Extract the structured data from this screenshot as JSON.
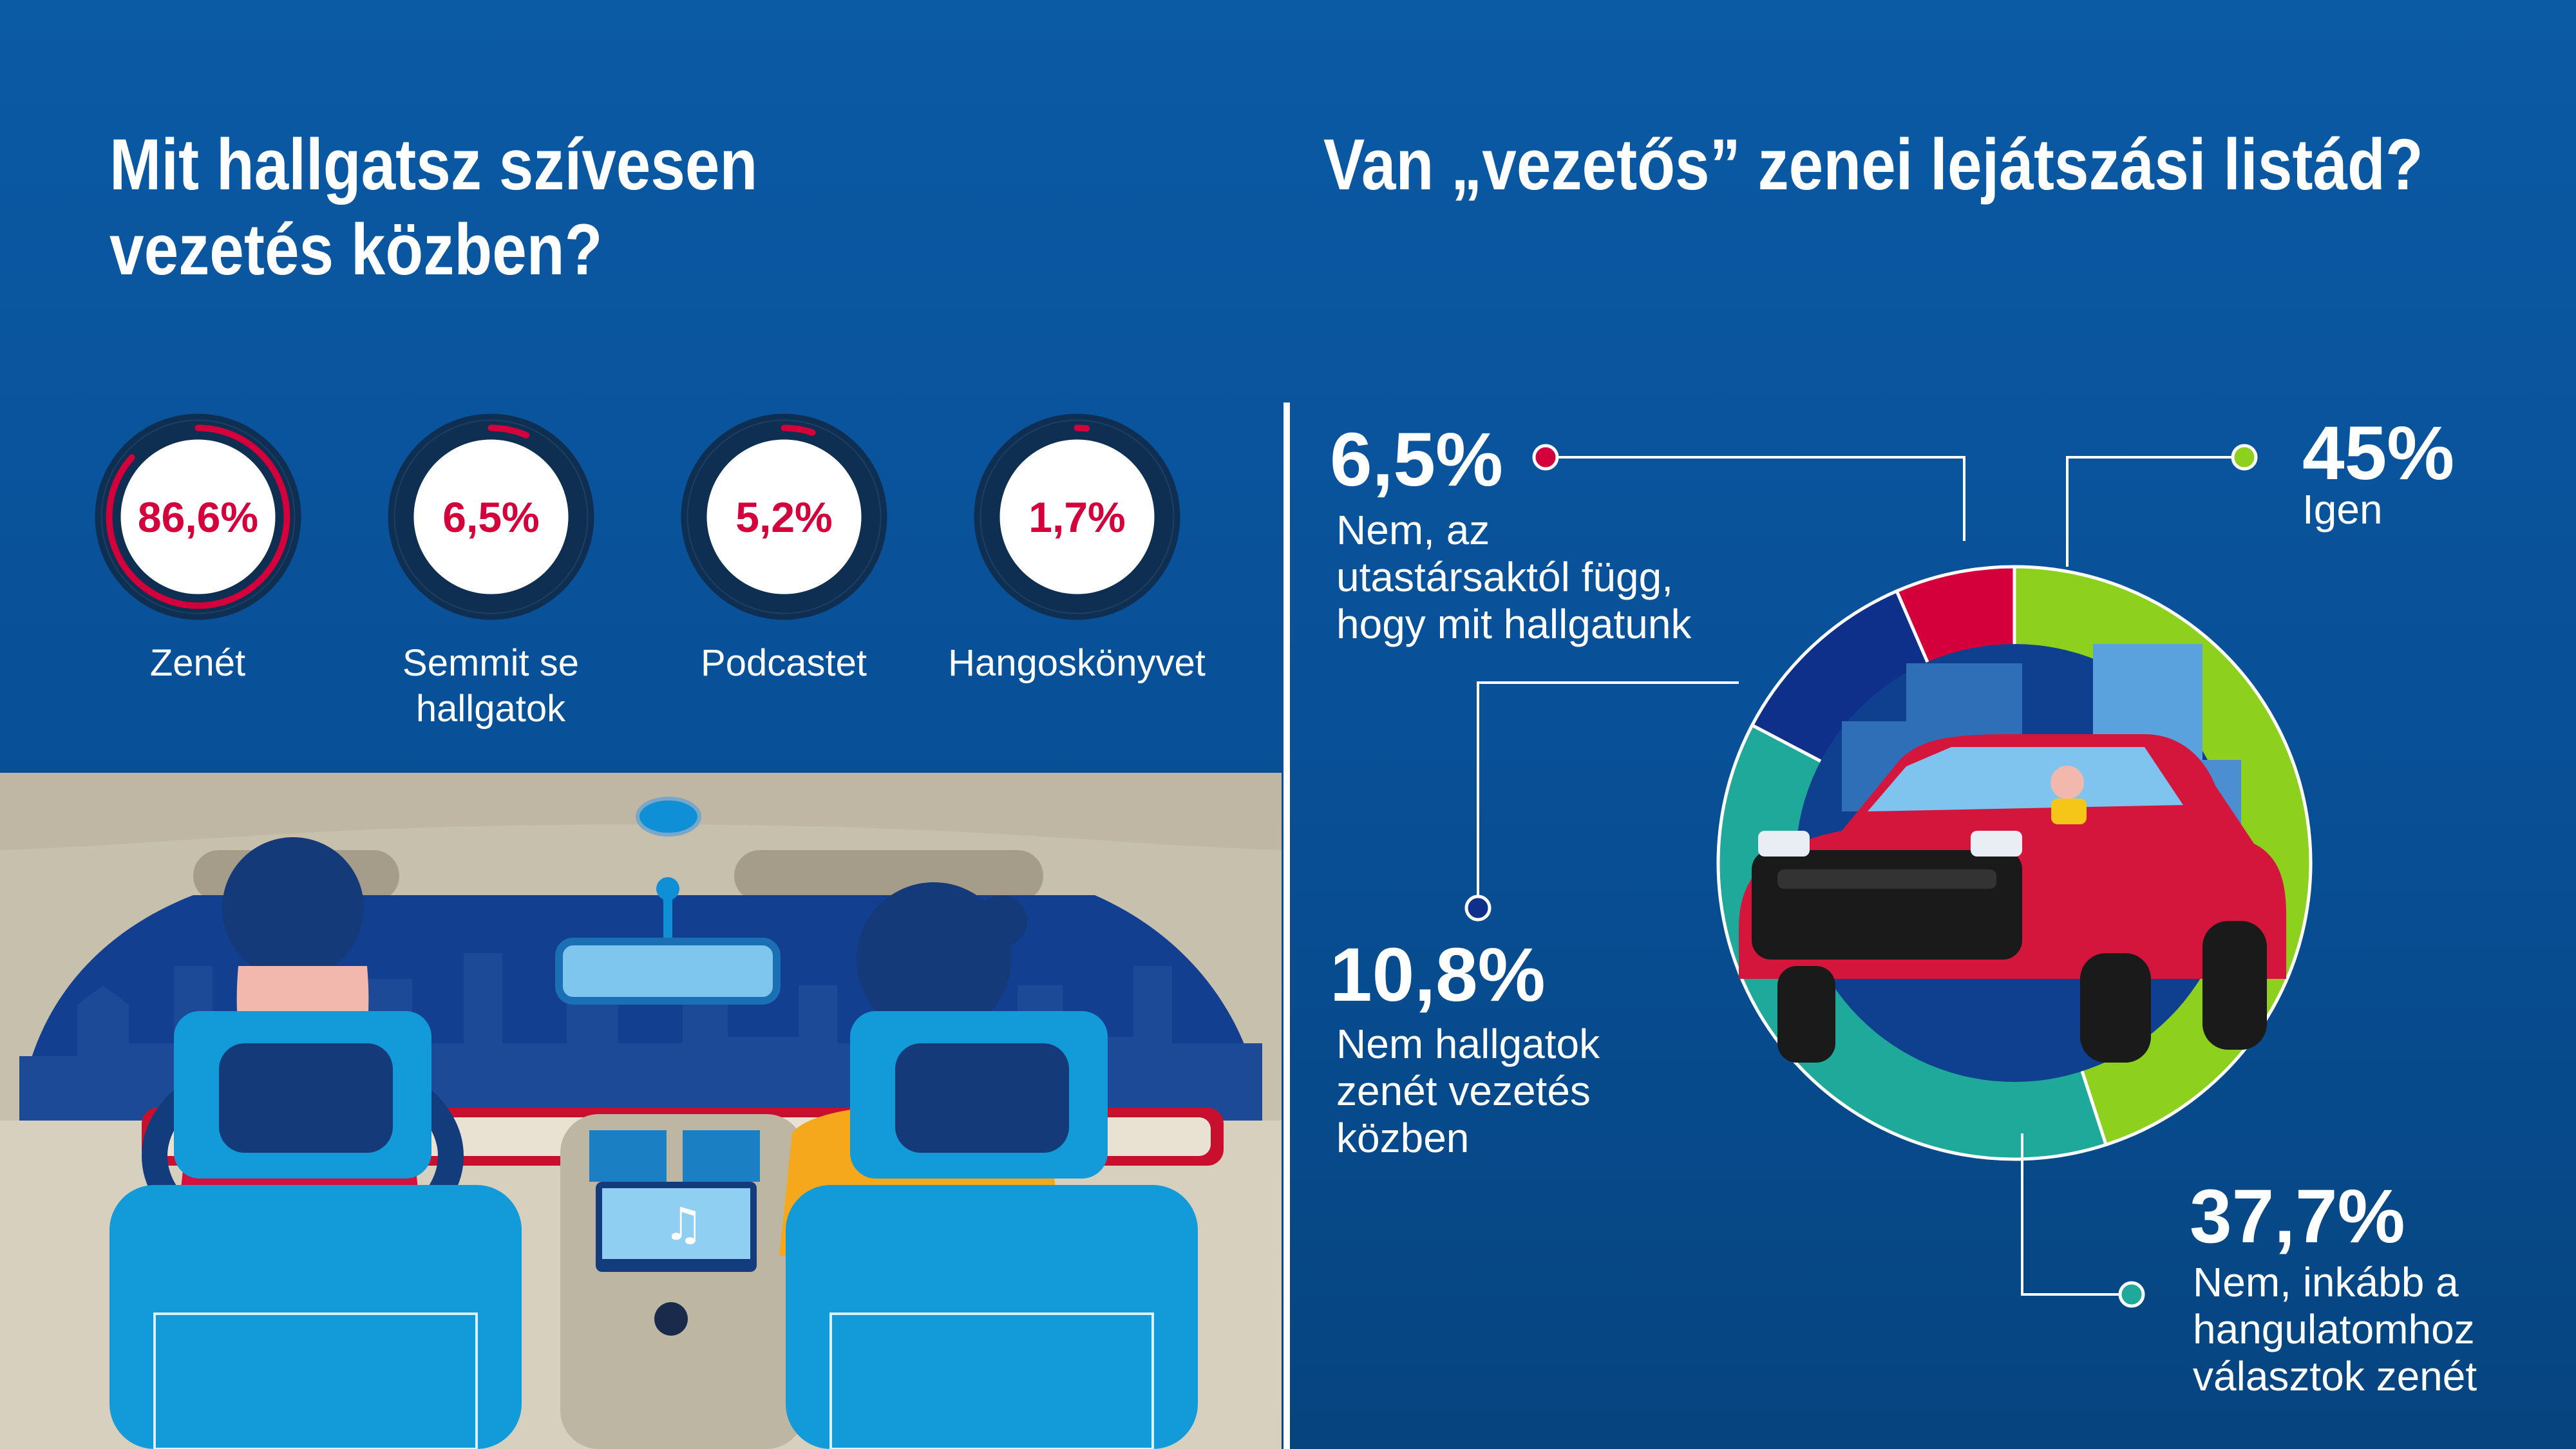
{
  "left": {
    "title": "Mit hallgatsz szívesen vezetés közben?",
    "items": [
      {
        "value": "86,6%",
        "label": "Zenét",
        "percent": 86.6
      },
      {
        "value": "6,5%",
        "label": "Semmit se hallgatok",
        "percent": 6.5
      },
      {
        "value": "5,2%",
        "label": "Podcastet",
        "percent": 5.2
      },
      {
        "value": "1,7%",
        "label": "Hangoskönyvet",
        "percent": 1.7
      }
    ]
  },
  "right": {
    "title": "Van „vezetős” zenei lejátszási listád?",
    "callouts": {
      "yes": {
        "value": "45%",
        "line1": "Igen"
      },
      "no_mood": {
        "value": "37,7%",
        "line1": "Nem, inkább a",
        "line2": "hangulatomhoz",
        "line3": "választok zenét"
      },
      "no_music": {
        "value": "10,8%",
        "line1": "Nem hallgatok",
        "line2": "zenét vezetés",
        "line3": "közben"
      },
      "no_passenger": {
        "value": "6,5%",
        "line1": "Nem, az",
        "line2": "utastársaktól függ,",
        "line3": "hogy mit hallgatunk"
      }
    }
  },
  "chart_data": [
    {
      "type": "bar",
      "title": "Mit hallgatsz szívesen vezetés közben?",
      "categories": [
        "Zenét",
        "Semmit se hallgatok",
        "Podcastet",
        "Hangoskönyvet"
      ],
      "values": [
        86.6,
        6.5,
        5.2,
        1.7
      ],
      "ylim": [
        0,
        100
      ]
    },
    {
      "type": "pie",
      "title": "Van „vezetős” zenei lejátszási listád?",
      "categories": [
        "Igen",
        "Nem, inkább a hangulatomhoz választok zenét",
        "Nem hallgatok zenét vezetés közben",
        "Nem, az utastársaktól függ, hogy mit hallgatunk"
      ],
      "values": [
        45,
        37.7,
        10.8,
        6.5
      ]
    }
  ],
  "colors": {
    "background": "#0a56a0",
    "accent_red": "#d4003b",
    "green": "#8dd11e",
    "teal": "#1fa99a",
    "navy": "#0e2f8a",
    "ring_dark": "#0e2f52"
  }
}
